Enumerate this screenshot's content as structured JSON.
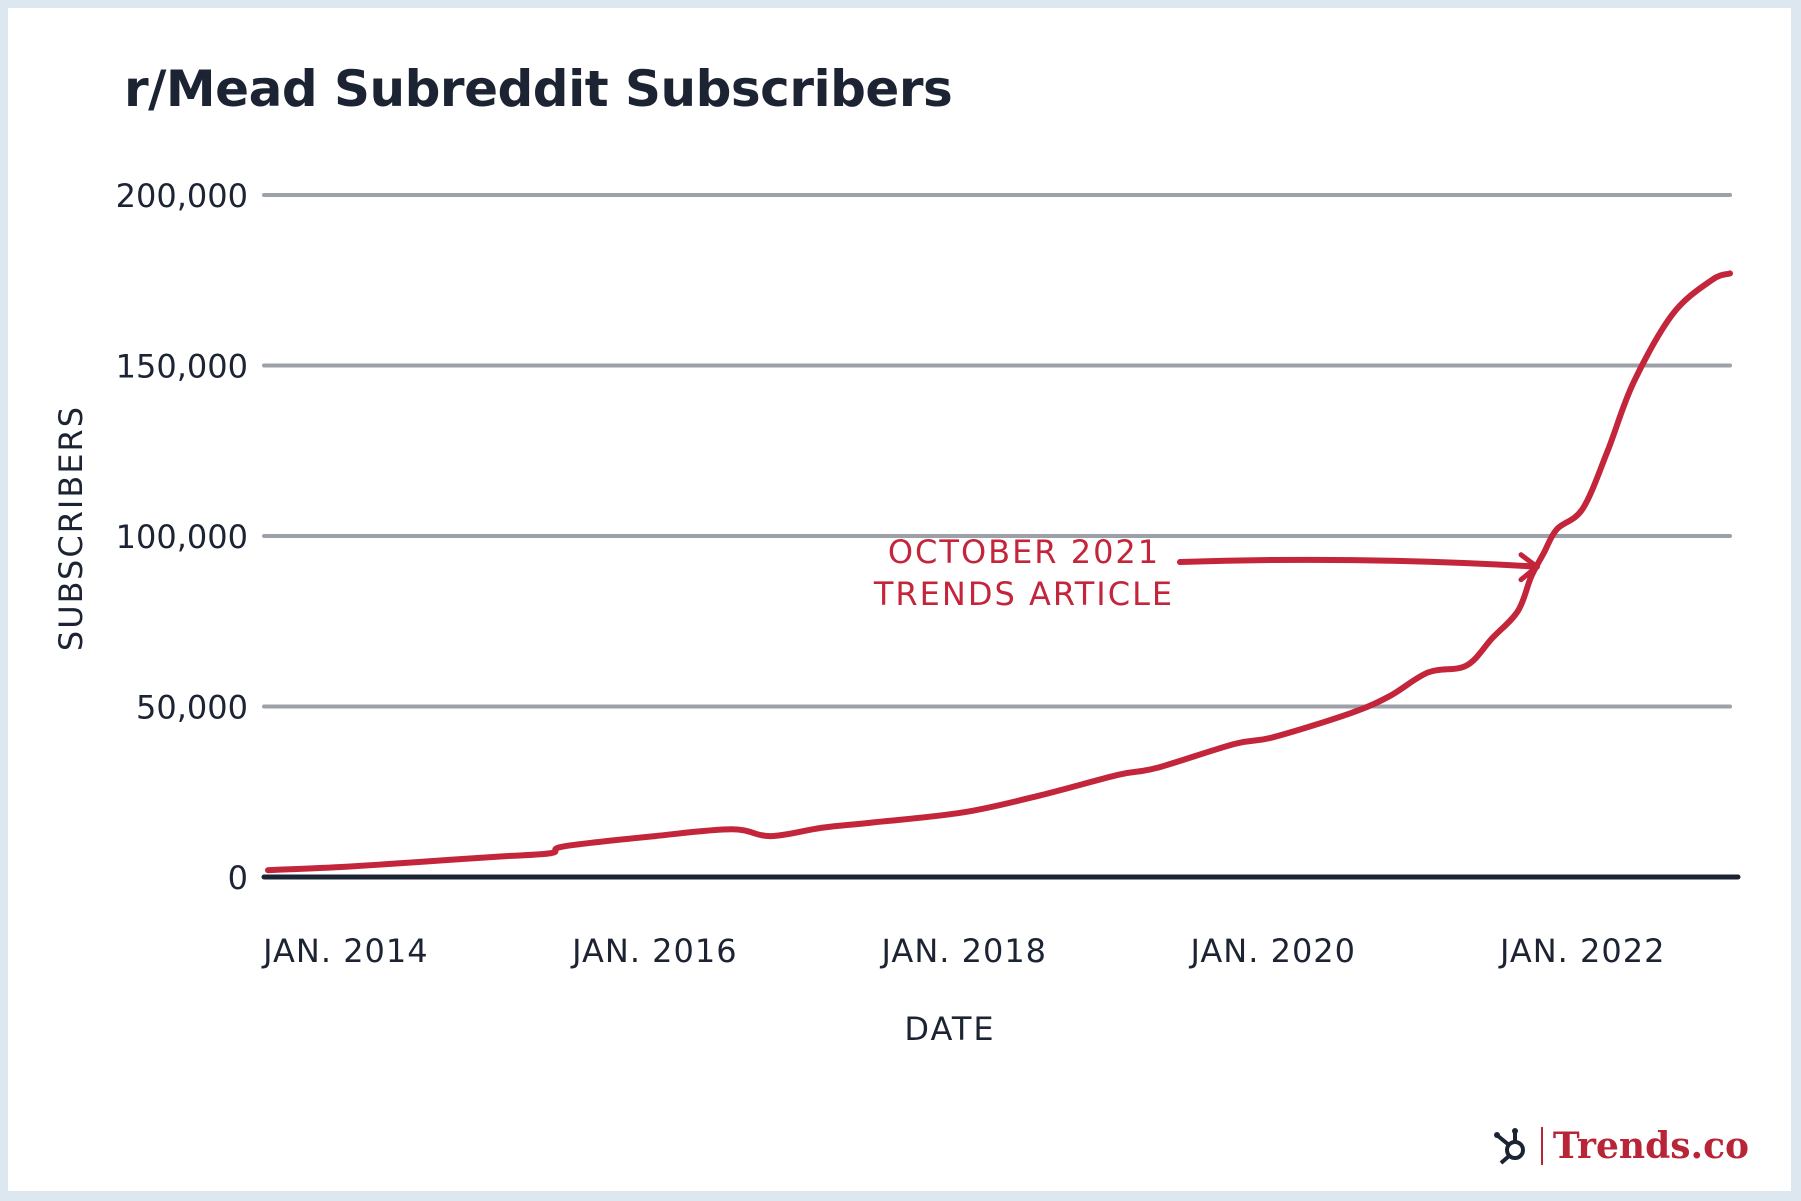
{
  "chart_data": {
    "type": "line",
    "title": "r/Mead Subreddit Subscribers",
    "xlabel": "DATE",
    "ylabel": "SUBSCRIBERS",
    "ylim": [
      0,
      200000
    ],
    "xlim": [
      "2013-07-01",
      "2022-12-15"
    ],
    "y_ticks": [
      "0",
      "50,000",
      "100,000",
      "150,000",
      "200,000"
    ],
    "y_tick_values": [
      0,
      50000,
      100000,
      150000,
      200000
    ],
    "x_ticks": [
      "JAN. 2014",
      "JAN. 2016",
      "JAN. 2018",
      "JAN. 2020",
      "JAN. 2022"
    ],
    "x_tick_values": [
      "2014-01-01",
      "2016-01-01",
      "2018-01-01",
      "2020-01-01",
      "2022-01-01"
    ],
    "grid": true,
    "series": [
      {
        "color": "#c3253a",
        "x": [
          "2013-07-01",
          "2014-01-01",
          "2014-07-01",
          "2015-01-01",
          "2015-05-01",
          "2015-06-01",
          "2016-01-01",
          "2016-07-01",
          "2016-10-01",
          "2017-02-01",
          "2017-06-01",
          "2018-01-01",
          "2018-07-01",
          "2019-01-01",
          "2019-04-01",
          "2019-10-01",
          "2020-01-01",
          "2020-07-01",
          "2020-10-01",
          "2021-01-01",
          "2021-04-01",
          "2021-06-01",
          "2021-08-01",
          "2021-09-01",
          "2021-10-01",
          "2021-11-01",
          "2022-01-01",
          "2022-03-01",
          "2022-05-01",
          "2022-08-01",
          "2022-11-01",
          "2022-12-15"
        ],
        "y": [
          2000,
          3000,
          4500,
          6000,
          7000,
          9000,
          12000,
          14000,
          12000,
          14500,
          16000,
          19000,
          24000,
          30000,
          32000,
          39000,
          41000,
          48000,
          53000,
          60000,
          62000,
          70000,
          78000,
          88000,
          95000,
          102000,
          108000,
          125000,
          145000,
          165000,
          175000,
          177000
        ]
      }
    ],
    "annotations": [
      {
        "text_lines": [
          "OCTOBER 2021",
          "TRENDS ARTICLE"
        ],
        "color": "#c3253a",
        "arrow_to": {
          "x": "2021-09-15",
          "y": 91000
        }
      }
    ]
  },
  "branding": {
    "logo": "hubspot-sprocket-icon",
    "name": "Trends.co",
    "color": "#b72537"
  }
}
